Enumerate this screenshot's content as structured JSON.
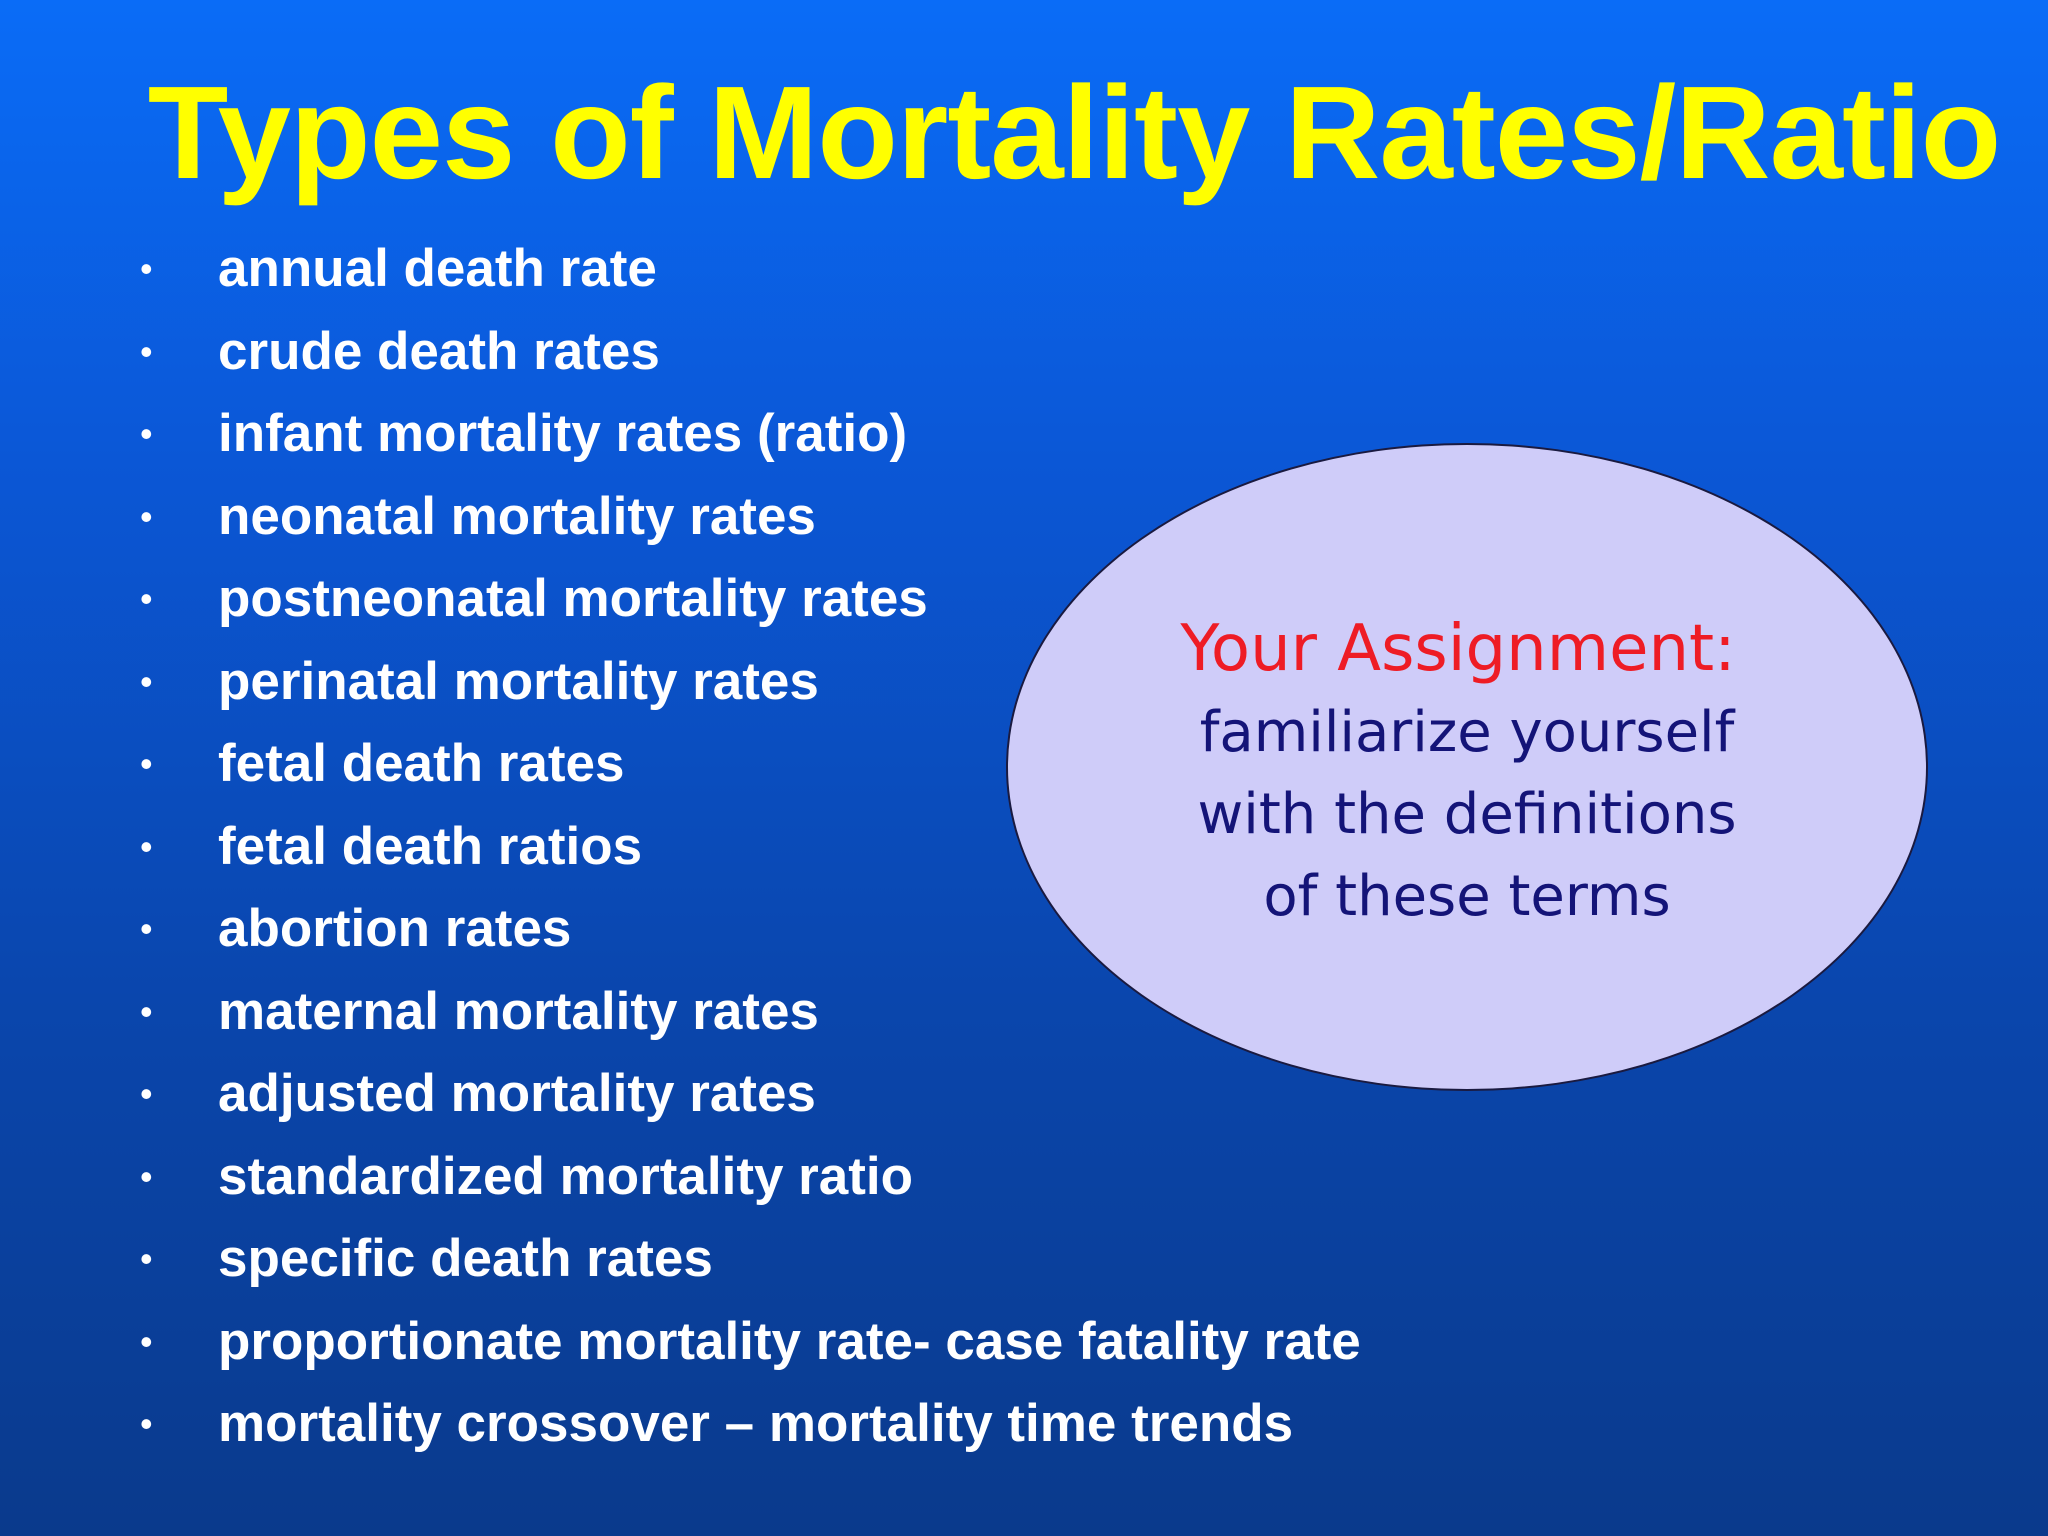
{
  "title": "Types of Mortality Rates/Ratio",
  "bullet_symbol": "•",
  "bullets": [
    "annual death rate",
    "crude death rates",
    "infant mortality rates (ratio)",
    "neonatal mortality rates",
    "postneonatal mortality rates",
    "perinatal mortality rates",
    "fetal death rates",
    "fetal death ratios",
    "abortion rates",
    "maternal mortality rates",
    "adjusted mortality rates",
    "standardized mortality ratio",
    "specific death rates",
    "proportionate mortality rate- case fatality rate",
    "mortality crossover – mortality time trends"
  ],
  "assignment": {
    "heading": "Your Assignment:",
    "lines": [
      "familiarize yourself",
      "with the definitions",
      "of these terms"
    ]
  },
  "colors": {
    "background_top": "#0a6cf7",
    "background_bottom": "#0a3a8c",
    "title": "#ffff00",
    "bullet_text": "#ffffff",
    "ellipse_fill": "#cfccf9",
    "assignment_heading": "#ee1c25",
    "assignment_text": "#141478"
  }
}
